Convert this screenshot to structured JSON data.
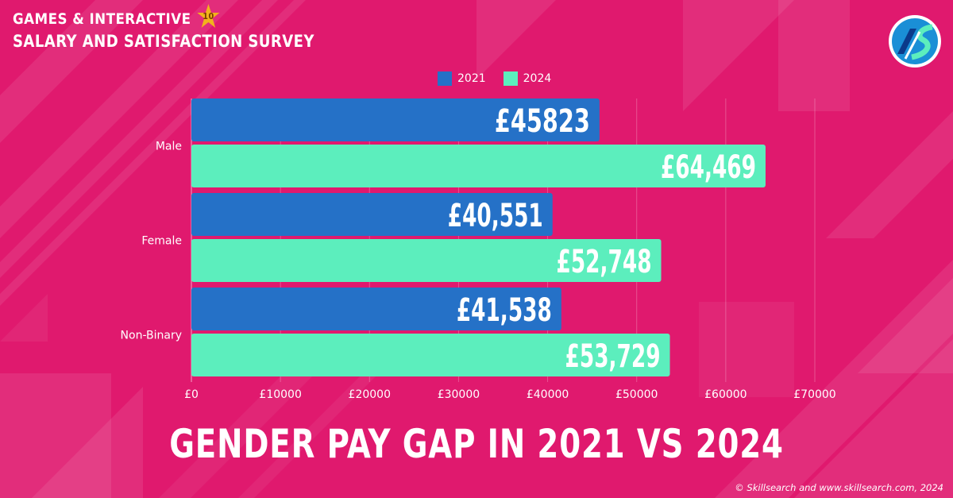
{
  "brand": {
    "line1": "GAMES & INTERACTIVE",
    "line2": "SALARY AND SATISFACTION SURVEY",
    "badge": "10"
  },
  "icons": {
    "badge_shape": "star-icon",
    "logo": "skillsearch-logo-icon"
  },
  "colors": {
    "background": "#e0196e",
    "series_2021": "#2571c7",
    "series_2024": "#5ceebd",
    "text": "#ffffff"
  },
  "big_title": "GENDER PAY GAP IN 2021 VS 2024",
  "copyright": "© Skillsearch and www.skillsearch.com, 2024",
  "chart_data": {
    "type": "bar",
    "orientation": "horizontal",
    "categories": [
      "Male",
      "Female",
      "Non-Binary"
    ],
    "series": [
      {
        "name": "2021",
        "values": [
          45823,
          40551,
          41538
        ],
        "labels": [
          "£45823",
          "£40,551",
          "£41,538"
        ],
        "color": "#2571c7"
      },
      {
        "name": "2024",
        "values": [
          64469,
          52748,
          53729
        ],
        "labels": [
          "£64,469",
          "£52,748",
          "£53,729"
        ],
        "color": "#5ceebd"
      }
    ],
    "xlim": [
      0,
      70000
    ],
    "xticks": [
      0,
      10000,
      20000,
      30000,
      40000,
      50000,
      60000,
      70000
    ],
    "xtick_labels": [
      "£0",
      "£10000",
      "£20000",
      "£30000",
      "£40000",
      "£50000",
      "£60000",
      "£70000"
    ],
    "legend": "top",
    "grid": true
  }
}
